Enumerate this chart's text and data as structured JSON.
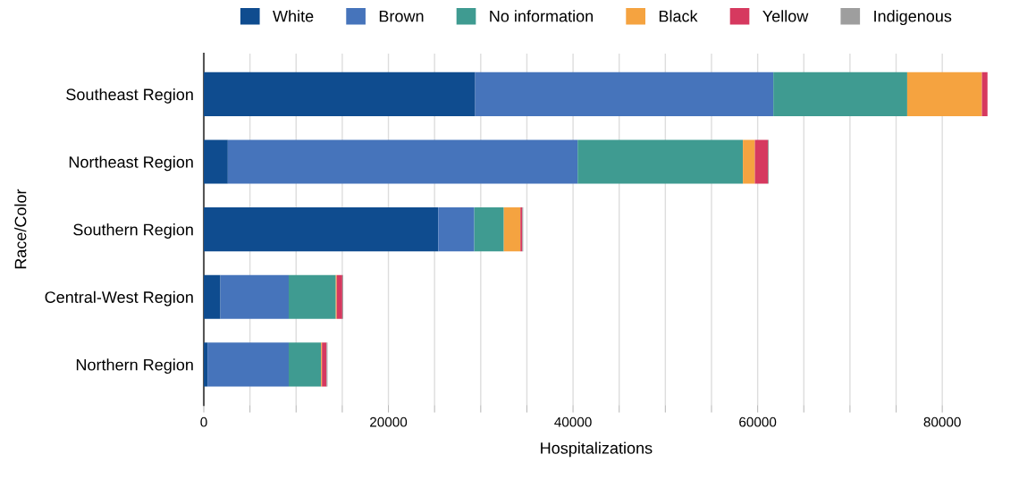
{
  "chart_data": {
    "type": "bar",
    "orientation": "horizontal",
    "stacked": true,
    "categories": [
      "Southeast Region",
      "Northeast Region",
      "Southern Region",
      "Central-West Region",
      "Northern Region"
    ],
    "series": [
      {
        "name": "White",
        "color": "#0f4c8f",
        "values": [
          29400,
          2600,
          25400,
          1800,
          400
        ]
      },
      {
        "name": "Brown",
        "color": "#4674bb",
        "values": [
          32300,
          37900,
          3900,
          7400,
          8800
        ]
      },
      {
        "name": "No information",
        "color": "#3f9b91",
        "values": [
          14500,
          17900,
          3200,
          5100,
          3500
        ]
      },
      {
        "name": "Black",
        "color": "#f5a340",
        "values": [
          8100,
          1300,
          1800,
          100,
          100
        ]
      },
      {
        "name": "Yellow",
        "color": "#d6395f",
        "values": [
          600,
          1400,
          200,
          600,
          500
        ]
      },
      {
        "name": "Indigenous",
        "color": "#9e9e9e",
        "values": [
          null,
          100,
          100,
          100,
          100
        ]
      }
    ],
    "xlabel": "Hospitalizations",
    "ylabel": "Race/Color",
    "xlim": [
      0,
      85000
    ],
    "xticks": [
      0,
      {
        "value": 5000,
        "label": null
      },
      {
        "value": 10000,
        "label": null
      },
      {
        "value": 15000,
        "label": null
      },
      20000,
      {
        "value": 25000,
        "label": null
      },
      {
        "value": 30000,
        "label": null
      },
      {
        "value": 35000,
        "label": null
      },
      40000,
      {
        "value": 45000,
        "label": null
      },
      {
        "value": 50000,
        "label": null
      },
      {
        "value": 55000,
        "label": null
      },
      60000,
      {
        "value": 65000,
        "label": null
      },
      {
        "value": 70000,
        "label": null
      },
      {
        "value": 75000,
        "label": null
      },
      80000
    ],
    "grid": "x",
    "legend": "top"
  }
}
